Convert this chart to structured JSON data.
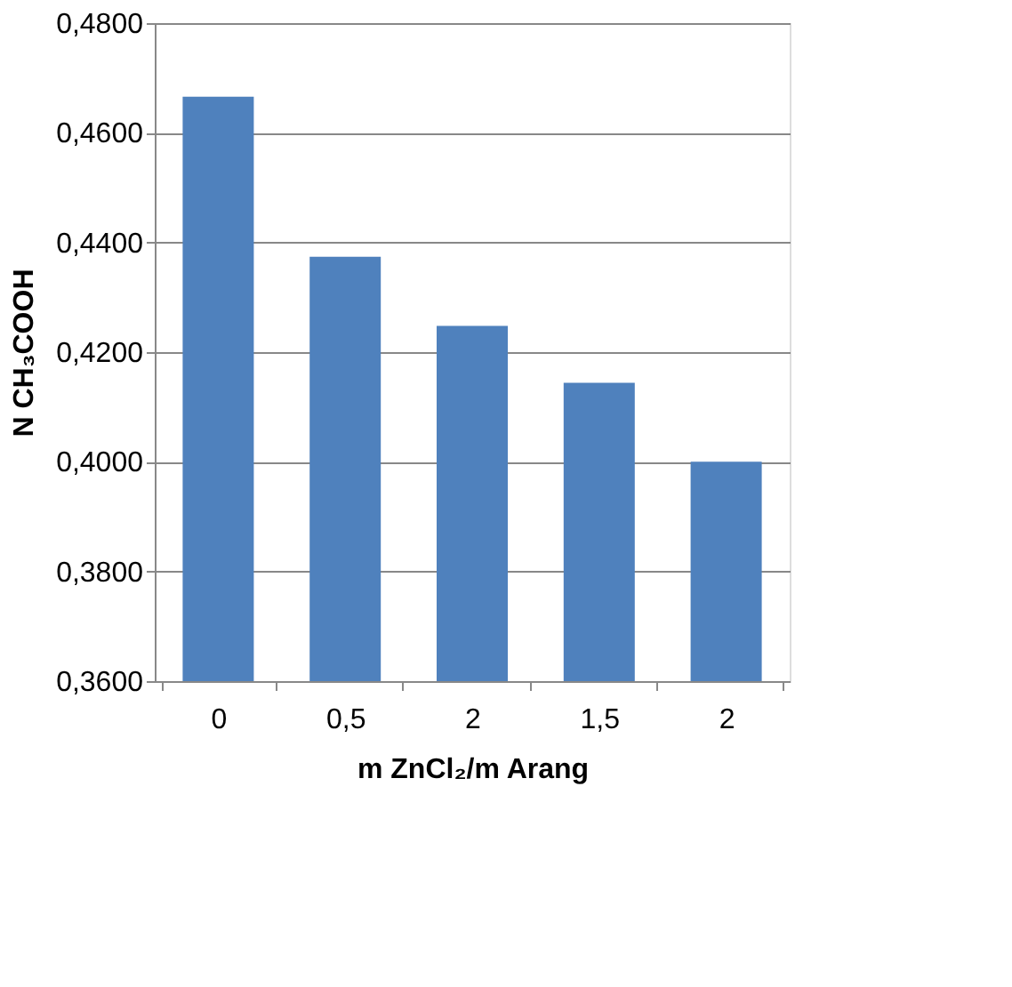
{
  "chart_data": {
    "type": "bar",
    "xlabel": "m ZnCl₂/m Arang",
    "ylabel": "N CH₃COOH",
    "categories": [
      "0",
      "0,5",
      "2",
      "1,5",
      "2"
    ],
    "values": [
      0.4666,
      0.4374,
      0.4248,
      0.4144,
      0.4
    ],
    "color": "#4f81bd",
    "ylim": [
      0.36,
      0.48
    ],
    "yticks": [
      {
        "value": 0.36,
        "label": "0,3600"
      },
      {
        "value": 0.38,
        "label": "0,3800"
      },
      {
        "value": 0.4,
        "label": "0,4000"
      },
      {
        "value": 0.42,
        "label": "0,4200"
      },
      {
        "value": 0.44,
        "label": "0,4400"
      },
      {
        "value": 0.46,
        "label": "0,4600"
      },
      {
        "value": 0.48,
        "label": "0,4800"
      }
    ],
    "grid": "y"
  }
}
